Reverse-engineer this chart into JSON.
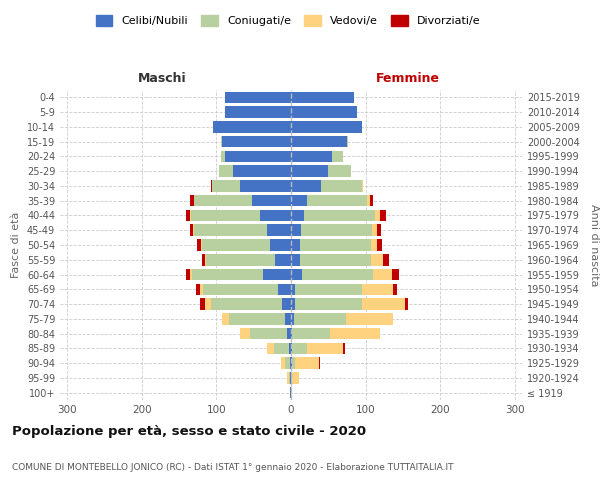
{
  "age_groups": [
    "100+",
    "95-99",
    "90-94",
    "85-89",
    "80-84",
    "75-79",
    "70-74",
    "65-69",
    "60-64",
    "55-59",
    "50-54",
    "45-49",
    "40-44",
    "35-39",
    "30-34",
    "25-29",
    "20-24",
    "15-19",
    "10-14",
    "5-9",
    "0-4"
  ],
  "birth_years": [
    "≤ 1919",
    "1920-1924",
    "1925-1929",
    "1930-1934",
    "1935-1939",
    "1940-1944",
    "1945-1949",
    "1950-1954",
    "1955-1959",
    "1960-1964",
    "1965-1969",
    "1970-1974",
    "1975-1979",
    "1980-1984",
    "1985-1989",
    "1990-1994",
    "1995-1999",
    "2000-2004",
    "2005-2009",
    "2010-2014",
    "2015-2019"
  ],
  "maschi_celibi": [
    1,
    1,
    2,
    3,
    5,
    8,
    12,
    18,
    38,
    22,
    28,
    32,
    42,
    52,
    68,
    78,
    88,
    92,
    105,
    88,
    88
  ],
  "maschi_coniugati": [
    0,
    2,
    6,
    20,
    50,
    75,
    95,
    100,
    95,
    92,
    92,
    98,
    92,
    78,
    38,
    18,
    6,
    2,
    0,
    0,
    0
  ],
  "maschi_vedovi": [
    0,
    2,
    6,
    9,
    13,
    9,
    9,
    4,
    2,
    1,
    1,
    1,
    1,
    0,
    0,
    0,
    0,
    0,
    0,
    0,
    0
  ],
  "maschi_divorziati": [
    0,
    0,
    0,
    0,
    0,
    0,
    6,
    5,
    6,
    4,
    5,
    5,
    6,
    5,
    2,
    0,
    0,
    0,
    0,
    0,
    0
  ],
  "femmine_nubili": [
    0,
    0,
    1,
    2,
    2,
    4,
    5,
    5,
    15,
    12,
    12,
    14,
    18,
    22,
    40,
    50,
    55,
    75,
    95,
    88,
    85
  ],
  "femmine_coniugate": [
    0,
    2,
    5,
    20,
    50,
    70,
    90,
    90,
    95,
    95,
    95,
    95,
    95,
    80,
    55,
    30,
    15,
    2,
    0,
    0,
    0
  ],
  "femmine_vedove": [
    2,
    9,
    32,
    48,
    68,
    63,
    58,
    42,
    26,
    16,
    9,
    6,
    6,
    4,
    2,
    0,
    0,
    0,
    0,
    0,
    0
  ],
  "femmine_divorziate": [
    0,
    0,
    1,
    2,
    0,
    0,
    4,
    5,
    9,
    9,
    6,
    6,
    9,
    4,
    0,
    0,
    0,
    0,
    0,
    0,
    0
  ],
  "color_celibi": "#4472c4",
  "color_coniugati": "#b8cfa0",
  "color_vedovi": "#ffd27f",
  "color_divorziati": "#c00000",
  "xlim": 310,
  "xticks": [
    -300,
    -200,
    -100,
    0,
    100,
    200,
    300
  ],
  "title": "Popolazione per età, sesso e stato civile - 2020",
  "subtitle": "COMUNE DI MONTEBELLO JONICO (RC) - Dati ISTAT 1° gennaio 2020 - Elaborazione TUTTAITALIA.IT",
  "label_maschi": "Maschi",
  "label_femmine": "Femmine",
  "ylabel_left": "Fasce di età",
  "ylabel_right": "Anni di nascita",
  "legend_labels": [
    "Celibi/Nubili",
    "Coniugati/e",
    "Vedovi/e",
    "Divorziati/e"
  ],
  "bg_color": "#ffffff",
  "grid_color": "#cccccc"
}
